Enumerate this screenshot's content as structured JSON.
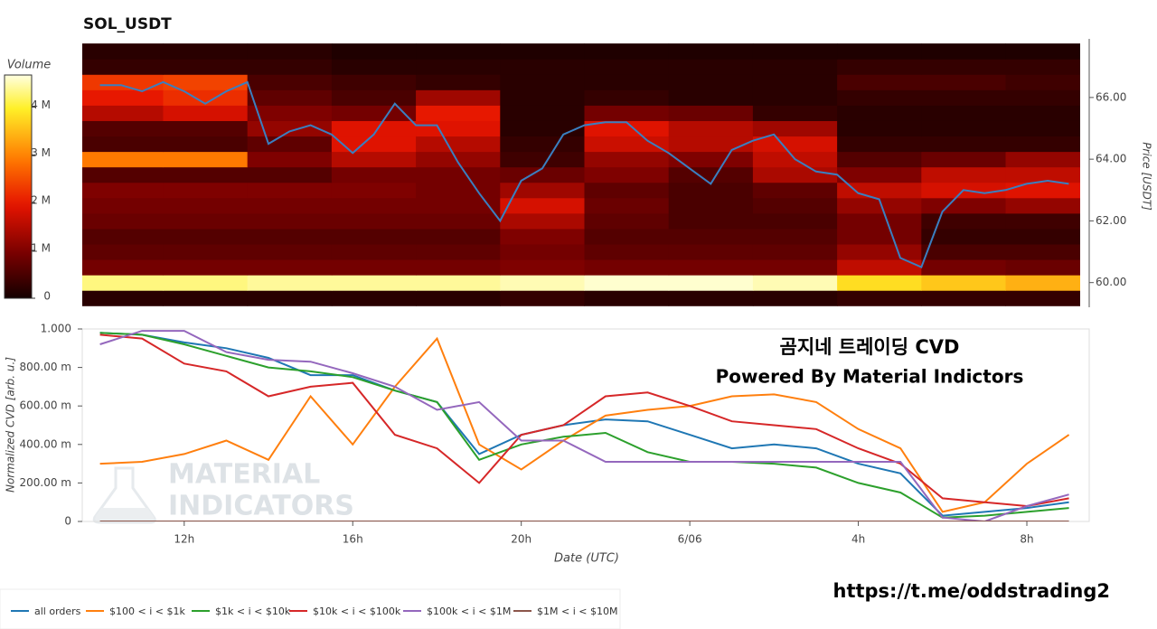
{
  "chart_data": [
    {
      "type": "heatmap",
      "title": "SOL_USDT",
      "x": [
        10.5,
        12.5,
        14.5,
        16.5,
        18.5,
        20.5,
        22.5,
        24.5,
        26.5,
        28.5,
        30.5,
        32.5
      ],
      "y": [
        59.5,
        60,
        60.5,
        61,
        61.5,
        62,
        62.5,
        63,
        63.5,
        64,
        64.5,
        65,
        65.5,
        66,
        66.5,
        67,
        67.5
      ],
      "z": [
        [
          0.2,
          0.2,
          0.2,
          0.2,
          0.2,
          0.3,
          0.2,
          0.2,
          0.2,
          0.3,
          0.3,
          0.3
        ],
        [
          4.3,
          4.3,
          4.4,
          4.4,
          4.4,
          4.5,
          4.6,
          4.6,
          4.5,
          3.8,
          3.6,
          3.4
        ],
        [
          0.9,
          0.9,
          0.9,
          0.9,
          0.9,
          1.0,
          0.9,
          0.9,
          0.9,
          1.6,
          0.9,
          0.8
        ],
        [
          0.7,
          0.7,
          0.7,
          0.7,
          0.7,
          0.9,
          0.7,
          0.7,
          0.7,
          1.2,
          0.5,
          0.5
        ],
        [
          0.6,
          0.6,
          0.6,
          0.6,
          0.6,
          1.0,
          0.6,
          0.6,
          0.6,
          0.9,
          0.3,
          0.3
        ],
        [
          0.8,
          0.8,
          0.8,
          0.8,
          0.8,
          1.4,
          0.7,
          0.5,
          0.5,
          0.9,
          0.4,
          0.4
        ],
        [
          0.9,
          0.9,
          0.9,
          0.9,
          0.9,
          1.8,
          0.8,
          0.5,
          0.6,
          1.2,
          1.0,
          1.2
        ],
        [
          1.0,
          1.0,
          1.0,
          1.0,
          0.9,
          1.3,
          0.7,
          0.5,
          0.7,
          1.6,
          1.8,
          1.9
        ],
        [
          0.6,
          0.6,
          0.6,
          0.9,
          0.9,
          0.8,
          1.0,
          0.6,
          1.4,
          1.0,
          1.6,
          1.6
        ],
        [
          2.9,
          2.9,
          1.0,
          1.5,
          1.2,
          0.4,
          1.2,
          1.0,
          1.6,
          0.6,
          0.8,
          1.2
        ],
        [
          0.5,
          0.5,
          0.7,
          1.9,
          1.5,
          0.3,
          1.7,
          1.5,
          1.8,
          0.3,
          0.3,
          0.3
        ],
        [
          0.6,
          0.6,
          1.2,
          1.9,
          1.9,
          0.2,
          1.9,
          1.5,
          1.3,
          0.2,
          0.2,
          0.2
        ],
        [
          1.5,
          1.8,
          1.0,
          0.9,
          2.0,
          0.2,
          0.9,
          0.8,
          0.3,
          0.2,
          0.2,
          0.2
        ],
        [
          2.0,
          2.2,
          0.7,
          0.5,
          1.3,
          0.2,
          0.3,
          0.2,
          0.2,
          0.3,
          0.3,
          0.3
        ],
        [
          2.3,
          2.4,
          0.5,
          0.4,
          0.3,
          0.2,
          0.2,
          0.2,
          0.2,
          0.5,
          0.5,
          0.4
        ],
        [
          0.3,
          0.3,
          0.3,
          0.2,
          0.2,
          0.2,
          0.2,
          0.2,
          0.2,
          0.3,
          0.3,
          0.3
        ],
        [
          0.2,
          0.2,
          0.2,
          0.1,
          0.1,
          0.1,
          0.1,
          0.1,
          0.1,
          0.1,
          0.1,
          0.1
        ]
      ],
      "zlim": [
        0,
        4.67
      ],
      "zticks": [
        {
          "value": 0,
          "label": "0"
        },
        {
          "value": 1,
          "label": "1 M"
        },
        {
          "value": 2,
          "label": "2 M"
        },
        {
          "value": 3,
          "label": "3 M"
        },
        {
          "value": 4,
          "label": "4 M"
        }
      ],
      "colorbar_title": "Volume",
      "overlay": {
        "type": "line",
        "color": "#3a7fc0",
        "x": [
          10,
          10.5,
          11,
          11.5,
          12,
          12.5,
          13,
          13.5,
          14,
          14.5,
          15,
          15.5,
          16,
          16.5,
          17,
          17.5,
          18,
          18.5,
          19,
          19.5,
          20,
          20.5,
          21,
          21.5,
          22,
          22.5,
          23,
          23.5,
          24,
          24.5,
          25,
          25.5,
          26,
          26.5,
          27,
          27.5,
          28,
          28.5,
          29,
          29.5,
          30,
          30.5,
          31,
          31.5,
          32,
          32.5,
          33
        ],
        "values": [
          66.4,
          66.4,
          66.2,
          66.5,
          66.2,
          65.8,
          66.2,
          66.5,
          64.5,
          64.9,
          65.1,
          64.8,
          64.2,
          64.8,
          65.8,
          65.1,
          65.1,
          63.9,
          62.9,
          62.0,
          63.3,
          63.7,
          64.8,
          65.1,
          65.2,
          65.2,
          64.6,
          64.2,
          63.7,
          63.2,
          64.3,
          64.6,
          64.8,
          64.0,
          63.6,
          63.5,
          62.9,
          62.7,
          60.8,
          60.5,
          62.3,
          63.0,
          62.9,
          63.0,
          63.2,
          63.3,
          63.2
        ]
      },
      "xlim": [
        9.58,
        33.27
      ],
      "ylim": [
        59.2,
        67.9
      ],
      "yticks": [
        {
          "value": 60,
          "label": "60.00"
        },
        {
          "value": 62,
          "label": "62.00"
        },
        {
          "value": 64,
          "label": "64.00"
        },
        {
          "value": 66,
          "label": "66.00"
        }
      ],
      "ylabel": "Price [USDT]"
    },
    {
      "type": "line",
      "x": [
        10,
        11,
        12,
        13,
        14,
        15,
        16,
        17,
        18,
        19,
        20,
        21,
        22,
        23,
        24,
        25,
        26,
        27,
        28,
        29,
        30,
        31,
        32,
        33
      ],
      "series": [
        {
          "name": "all orders",
          "color": "#1f77b4",
          "values": [
            0.98,
            0.97,
            0.93,
            0.9,
            0.85,
            0.76,
            0.76,
            0.68,
            0.62,
            0.35,
            0.45,
            0.5,
            0.53,
            0.52,
            0.45,
            0.38,
            0.4,
            0.38,
            0.3,
            0.25,
            0.03,
            0.05,
            0.07,
            0.1
          ]
        },
        {
          "name": "$100 < i < $1k",
          "color": "#ff7f0e",
          "values": [
            0.3,
            0.31,
            0.35,
            0.42,
            0.32,
            0.65,
            0.4,
            0.7,
            0.95,
            0.4,
            0.27,
            0.42,
            0.55,
            0.58,
            0.6,
            0.65,
            0.66,
            0.62,
            0.48,
            0.38,
            0.05,
            0.1,
            0.3,
            0.45
          ]
        },
        {
          "name": "$1k < i < $10k",
          "color": "#2ca02c",
          "values": [
            0.98,
            0.97,
            0.92,
            0.86,
            0.8,
            0.78,
            0.75,
            0.68,
            0.62,
            0.32,
            0.4,
            0.44,
            0.46,
            0.36,
            0.31,
            0.31,
            0.3,
            0.28,
            0.2,
            0.15,
            0.02,
            0.03,
            0.05,
            0.07
          ]
        },
        {
          "name": "$10k < i < $100k",
          "color": "#d62728",
          "values": [
            0.97,
            0.95,
            0.82,
            0.78,
            0.65,
            0.7,
            0.72,
            0.45,
            0.38,
            0.2,
            0.45,
            0.5,
            0.65,
            0.67,
            0.6,
            0.52,
            0.5,
            0.48,
            0.38,
            0.3,
            0.12,
            0.1,
            0.08,
            0.12
          ]
        },
        {
          "name": "$100k < i < $1M",
          "color": "#9467bd",
          "values": [
            0.92,
            0.99,
            0.99,
            0.88,
            0.84,
            0.83,
            0.77,
            0.7,
            0.58,
            0.62,
            0.42,
            0.42,
            0.31,
            0.31,
            0.31,
            0.31,
            0.31,
            0.31,
            0.31,
            0.31,
            0.02,
            0,
            0.08,
            0.14
          ]
        },
        {
          "name": "$1M < i < $10M",
          "color": "#8c564b",
          "values": [
            0,
            0,
            0,
            0,
            0,
            0,
            0,
            0,
            0,
            0,
            0,
            0,
            0,
            0,
            0,
            0,
            0,
            0,
            0,
            0,
            0,
            0,
            0,
            0
          ]
        }
      ],
      "xlim": [
        9.58,
        33.48
      ],
      "xticks": [
        {
          "value": 12,
          "label": "12h"
        },
        {
          "value": 16,
          "label": "16h"
        },
        {
          "value": 20,
          "label": "20h"
        },
        {
          "value": 24,
          "label": "6/06"
        },
        {
          "value": 28,
          "label": "4h"
        },
        {
          "value": 32,
          "label": "8h"
        }
      ],
      "ylim": [
        0,
        1
      ],
      "yticks": [
        {
          "value": 0,
          "label": "0"
        },
        {
          "value": 0.2,
          "label": "200.00 m"
        },
        {
          "value": 0.4,
          "label": "400.00 m"
        },
        {
          "value": 0.6,
          "label": "600.00 m"
        },
        {
          "value": 0.8,
          "label": "800.00 m"
        },
        {
          "value": 1,
          "label": "1.000"
        }
      ],
      "xlabel": "Date (UTC)",
      "ylabel": "Normalized CVD [arb. u.]",
      "legend": "bottom",
      "annotations": [
        "곰지네 트레이딩 CVD",
        "Powered By Material Indictors",
        "MATERIAL",
        "INDICATORS",
        "https://t.me/oddstrading2"
      ]
    }
  ]
}
